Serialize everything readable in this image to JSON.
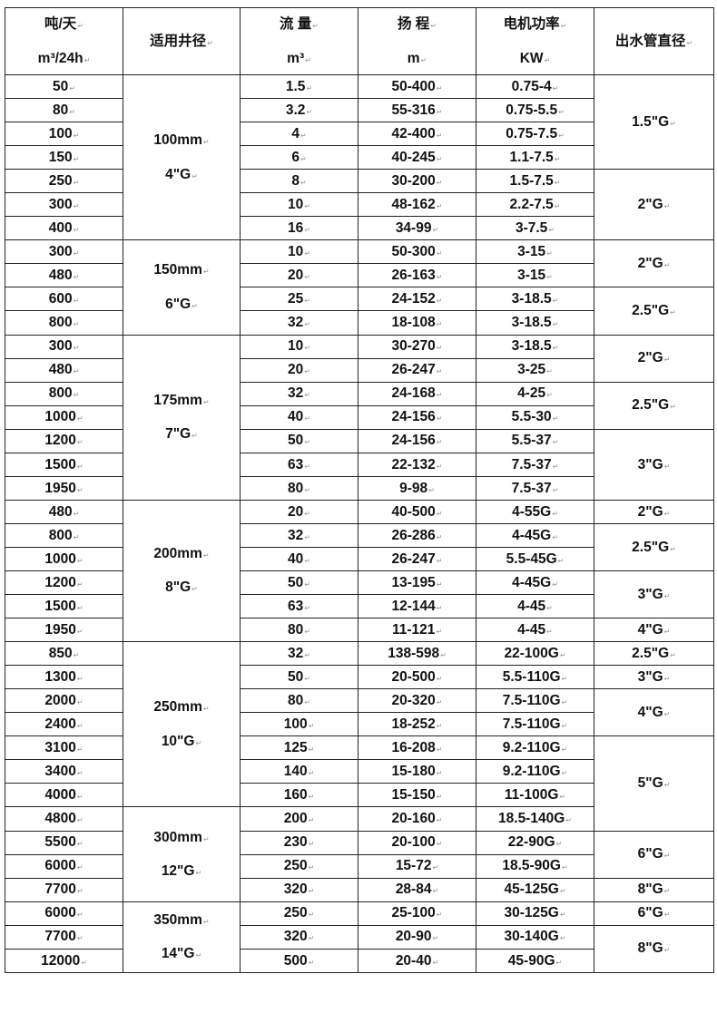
{
  "header": {
    "tons": [
      "吨/天",
      "m³/24h"
    ],
    "well": "适用井径",
    "flow": [
      "流 量",
      "m³"
    ],
    "head": [
      "扬 程",
      "m"
    ],
    "power": [
      "电机功率",
      "KW"
    ],
    "outlet": "出水管直径"
  },
  "groups": [
    {
      "well": [
        "100mm",
        "4\"G"
      ],
      "rows": [
        [
          "50",
          "1.5",
          "50-400",
          "0.75-4"
        ],
        [
          "80",
          "3.2",
          "55-316",
          "0.75-5.5"
        ],
        [
          "100",
          "4",
          "42-400",
          "0.75-7.5"
        ],
        [
          "150",
          "6",
          "40-245",
          "1.1-7.5"
        ],
        [
          "250",
          "8",
          "30-200",
          "1.5-7.5"
        ],
        [
          "300",
          "10",
          "48-162",
          "2.2-7.5"
        ],
        [
          "400",
          "16",
          "34-99",
          "3-7.5"
        ]
      ]
    },
    {
      "well": [
        "150mm",
        "6\"G"
      ],
      "rows": [
        [
          "300",
          "10",
          "50-300",
          "3-15"
        ],
        [
          "480",
          "20",
          "26-163",
          "3-15"
        ],
        [
          "600",
          "25",
          "24-152",
          "3-18.5"
        ],
        [
          "800",
          "32",
          "18-108",
          "3-18.5"
        ]
      ]
    },
    {
      "well": [
        "175mm",
        "7\"G"
      ],
      "rows": [
        [
          "300",
          "10",
          "30-270",
          "3-18.5"
        ],
        [
          "480",
          "20",
          "26-247",
          "3-25"
        ],
        [
          "800",
          "32",
          "24-168",
          "4-25"
        ],
        [
          "1000",
          "40",
          "24-156",
          "5.5-30"
        ],
        [
          "1200",
          "50",
          "24-156",
          "5.5-37"
        ],
        [
          "1500",
          "63",
          "22-132",
          "7.5-37"
        ],
        [
          "1950",
          "80",
          "9-98",
          "7.5-37"
        ]
      ]
    },
    {
      "well": [
        "200mm",
        "8\"G"
      ],
      "rows": [
        [
          "480",
          "20",
          "40-500",
          "4-55G"
        ],
        [
          "800",
          "32",
          "26-286",
          "4-45G"
        ],
        [
          "1000",
          "40",
          "26-247",
          "5.5-45G"
        ],
        [
          "1200",
          "50",
          "13-195",
          "4-45G"
        ],
        [
          "1500",
          "63",
          "12-144",
          "4-45"
        ],
        [
          "1950",
          "80",
          "11-121",
          "4-45"
        ]
      ]
    },
    {
      "well": [
        "250mm",
        "10\"G"
      ],
      "rows": [
        [
          "850",
          "32",
          "138-598",
          "22-100G"
        ],
        [
          "1300",
          "50",
          "20-500",
          "5.5-110G"
        ],
        [
          "2000",
          "80",
          "20-320",
          "7.5-110G"
        ],
        [
          "2400",
          "100",
          "18-252",
          "7.5-110G"
        ],
        [
          "3100",
          "125",
          "16-208",
          "9.2-110G"
        ],
        [
          "3400",
          "140",
          "15-180",
          "9.2-110G"
        ],
        [
          "4000",
          "160",
          "15-150",
          "11-100G"
        ]
      ]
    },
    {
      "well": [
        "300mm",
        "12\"G"
      ],
      "rows": [
        [
          "4800",
          "200",
          "20-160",
          "18.5-140G"
        ],
        [
          "5500",
          "230",
          "20-100",
          "22-90G"
        ],
        [
          "6000",
          "250",
          "15-72",
          "18.5-90G"
        ],
        [
          "7700",
          "320",
          "28-84",
          "45-125G"
        ]
      ]
    },
    {
      "well": [
        "350mm",
        "14\"G"
      ],
      "rows": [
        [
          "6000",
          "250",
          "25-100",
          "30-125G"
        ],
        [
          "7700",
          "320",
          "20-90",
          "30-140G"
        ],
        [
          "12000",
          "500",
          "20-40",
          "45-90G"
        ]
      ]
    }
  ],
  "outlet": [
    {
      "label": "1.5\"G",
      "span": 4
    },
    {
      "label": "2\"G",
      "span": 3
    },
    {
      "label": "2\"G",
      "span": 2
    },
    {
      "label": "2.5\"G",
      "span": 2
    },
    {
      "label": "2\"G",
      "span": 2
    },
    {
      "label": "2.5\"G",
      "span": 2
    },
    {
      "label": "3\"G",
      "span": 3
    },
    {
      "label": "2\"G",
      "span": 1
    },
    {
      "label": "2.5\"G",
      "span": 2
    },
    {
      "label": "3\"G",
      "span": 2
    },
    {
      "label": "4\"G",
      "span": 1
    },
    {
      "label": "2.5\"G",
      "span": 1
    },
    {
      "label": "3\"G",
      "span": 1
    },
    {
      "label": "4\"G",
      "span": 2
    },
    {
      "label": "5\"G",
      "span": 4
    },
    {
      "label": "6\"G",
      "span": 2
    },
    {
      "label": "8\"G",
      "span": 1
    },
    {
      "label": "6\"G",
      "span": 1
    },
    {
      "label": "8\"G",
      "span": 2
    }
  ]
}
